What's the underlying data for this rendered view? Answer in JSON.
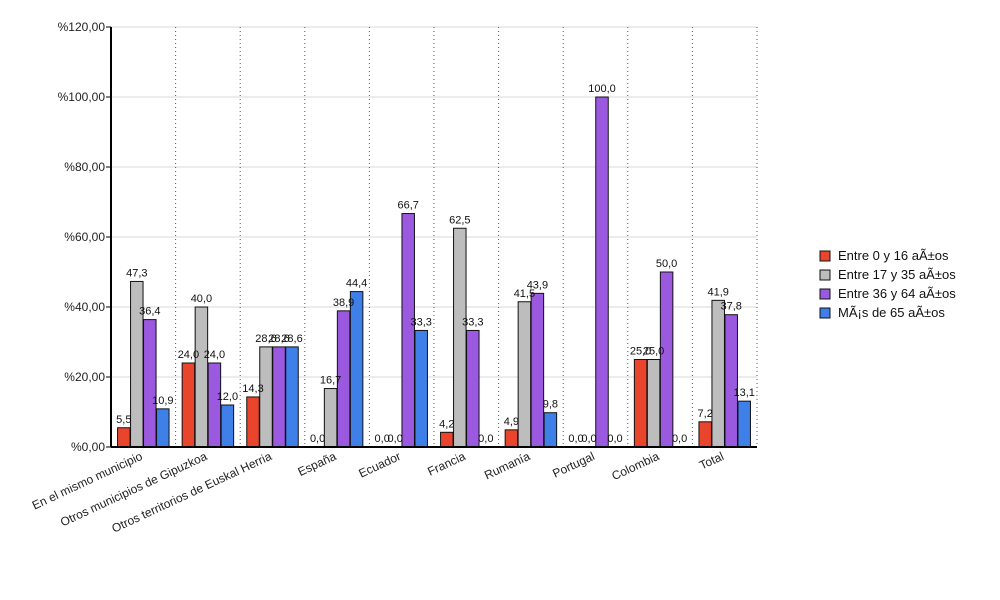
{
  "chart_data": {
    "type": "bar",
    "categories": [
      "En el mismo municipio",
      "Otros municipios de Gipuzkoa",
      "Otros territorios de Euskal Herria",
      "España",
      "Ecuador",
      "Francia",
      "Rumanía",
      "Portugal",
      "Colombia",
      "Total"
    ],
    "series": [
      {
        "name": "Entre 0 y 16 aÃ±os",
        "color": "#e8452c",
        "values": [
          5.5,
          24.0,
          14.3,
          0.0,
          0.0,
          4.2,
          4.9,
          0.0,
          25.0,
          7.2
        ],
        "labels": [
          "5,5",
          "24,0",
          "14,3",
          "0,0",
          "0,0",
          "4,2",
          "4,9",
          "0,0",
          "25,0",
          "7,2"
        ]
      },
      {
        "name": "Entre 17 y 35 aÃ±os",
        "color": "#bdbdbd",
        "values": [
          47.3,
          40.0,
          28.6,
          16.7,
          0.0,
          62.5,
          41.5,
          0.0,
          25.0,
          41.9
        ],
        "labels": [
          "47,3",
          "40,0",
          "28,6",
          "16,7",
          "0,0",
          "62,5",
          "41,5",
          "0,0",
          "25,0",
          "41,9"
        ]
      },
      {
        "name": "Entre 36 y 64 aÃ±os",
        "color": "#9b59e0",
        "values": [
          36.4,
          24.0,
          28.6,
          38.9,
          66.7,
          33.3,
          43.9,
          100.0,
          50.0,
          37.8
        ],
        "labels": [
          "36,4",
          "24,0",
          "28,6",
          "38,9",
          "66,7",
          "33,3",
          "43,9",
          "100,0",
          "50,0",
          "37,8"
        ]
      },
      {
        "name": "MÃ¡s de 65 aÃ±os",
        "color": "#3f7fe8",
        "values": [
          10.9,
          12.0,
          28.6,
          44.4,
          33.3,
          0.0,
          9.8,
          0.0,
          0.0,
          13.1
        ],
        "labels": [
          "10,9",
          "12,0",
          "28,6",
          "44,4",
          "33,3",
          "0,0",
          "9,8",
          "0,0",
          "0,0",
          "13,1"
        ]
      }
    ],
    "yticks": [
      0,
      20,
      40,
      60,
      80,
      100,
      120
    ],
    "ytick_labels": [
      "%0,00",
      "%20,00",
      "%40,00",
      "%60,00",
      "%80,00",
      "%100,00",
      "%120,00"
    ],
    "ylim": [
      0,
      120
    ],
    "grid": "horizontal solid, vertical dotted",
    "legend_position": "right"
  }
}
